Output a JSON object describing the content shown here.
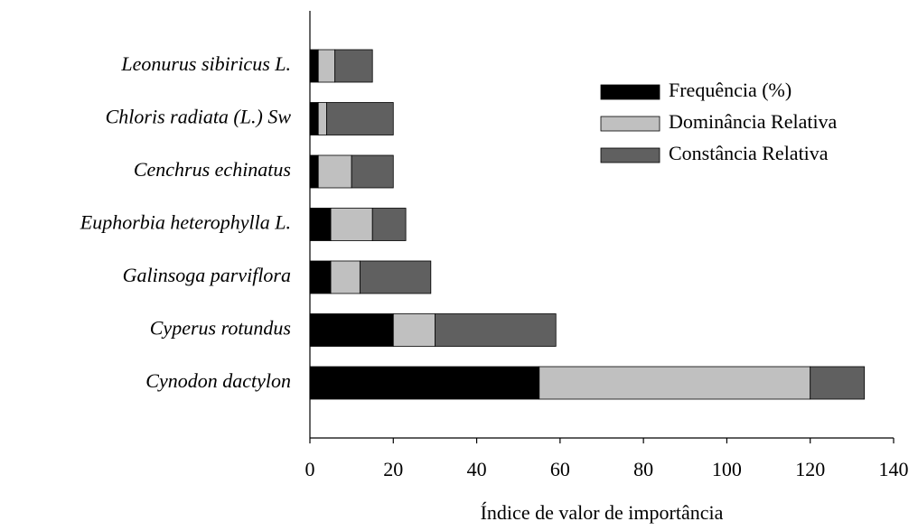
{
  "chart_data": {
    "type": "stacked-bar-horizontal",
    "xlabel": "Índice de valor de importância",
    "categories": [
      "Leonurus sibiricus L.",
      "Chloris radiata (L.) Sw",
      "Cenchrus echinatus",
      "Euphorbia heterophylla L.",
      "Galinsoga parviflora",
      "Cyperus rotundus",
      "Cynodon dactylon"
    ],
    "series": [
      {
        "name": "Frequência (%)",
        "color": "#000000",
        "values": [
          2,
          2,
          2,
          5,
          5,
          20,
          55
        ]
      },
      {
        "name": "Dominância Relativa",
        "color": "#c0c0c0",
        "values": [
          4,
          2,
          8,
          10,
          7,
          10,
          65
        ]
      },
      {
        "name": "Constância Relativa",
        "color": "#606060",
        "values": [
          9,
          16,
          10,
          8,
          17,
          29,
          13
        ]
      }
    ],
    "xlim": [
      0,
      140
    ],
    "xticks": [
      0,
      20,
      40,
      60,
      80,
      100,
      120,
      140
    ],
    "grid": false,
    "legend": "upper right"
  }
}
